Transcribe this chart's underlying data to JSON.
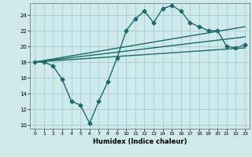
{
  "xlabel": "Humidex (Indice chaleur)",
  "bg_color": "#ceeaea",
  "grid_color": "#aacccc",
  "line_color": "#1a6b6b",
  "xlim": [
    -0.5,
    23.5
  ],
  "ylim": [
    9.5,
    25.5
  ],
  "yticks": [
    10,
    12,
    14,
    16,
    18,
    20,
    22,
    24
  ],
  "xticks": [
    0,
    1,
    2,
    3,
    4,
    5,
    6,
    7,
    8,
    9,
    10,
    11,
    12,
    13,
    14,
    15,
    16,
    17,
    18,
    19,
    20,
    21,
    22,
    23
  ],
  "series1_x": [
    0,
    1,
    2,
    3,
    4,
    5,
    6,
    7,
    8,
    9,
    10,
    11,
    12,
    13,
    14,
    15,
    16,
    17,
    18,
    19,
    20,
    21,
    22,
    23
  ],
  "series1_y": [
    18,
    18,
    17.5,
    15.8,
    13,
    12.5,
    10.2,
    13,
    15.5,
    18.5,
    22,
    23.5,
    24.5,
    23,
    24.8,
    25.2,
    24.5,
    23,
    22.5,
    22,
    22,
    20,
    19.8,
    20.2
  ],
  "series2_x": [
    0,
    23
  ],
  "series2_y": [
    18.0,
    19.8
  ],
  "series3_x": [
    0,
    23
  ],
  "series3_y": [
    18.0,
    21.2
  ],
  "series4_x": [
    0,
    23
  ],
  "series4_y": [
    18.0,
    22.5
  ],
  "marker_size": 2.5,
  "linewidth": 1.0
}
